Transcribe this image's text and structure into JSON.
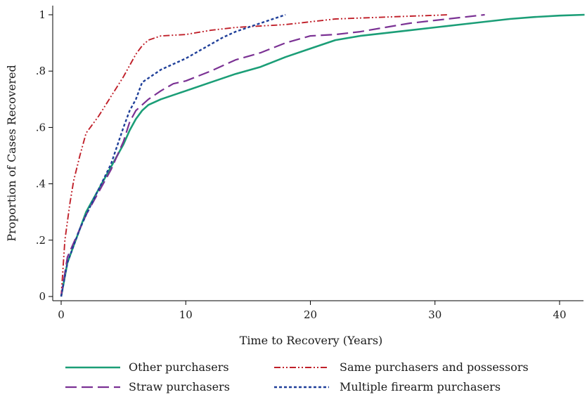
{
  "chart_data": {
    "type": "line",
    "title": "",
    "xlabel": "Time to Recovery (Years)",
    "ylabel": "Proportion of Cases Recovered",
    "xlim": [
      0,
      42
    ],
    "ylim": [
      0,
      1
    ],
    "x_ticks": [
      0,
      10,
      20,
      30,
      40
    ],
    "x_tick_labels": [
      "0",
      "10",
      "20",
      "30",
      "40"
    ],
    "y_ticks": [
      0,
      0.2,
      0.4,
      0.6,
      0.8,
      1
    ],
    "y_tick_labels": [
      "0",
      ".2",
      ".4",
      ".6",
      ".8",
      "1"
    ],
    "grid": false,
    "legend_position": "bottom",
    "series": [
      {
        "name": "Other purchasers",
        "color": "#1b9e77",
        "dash": "solid",
        "x": [
          0,
          0.5,
          1,
          1.5,
          2,
          3,
          4,
          5,
          5.5,
          6,
          6.5,
          7,
          8,
          9,
          10,
          12,
          14,
          16,
          18,
          20,
          22,
          24,
          26,
          28,
          30,
          32,
          34,
          36,
          38,
          40,
          42
        ],
        "y": [
          0,
          0.12,
          0.18,
          0.24,
          0.3,
          0.38,
          0.46,
          0.54,
          0.59,
          0.63,
          0.66,
          0.68,
          0.7,
          0.715,
          0.73,
          0.76,
          0.79,
          0.815,
          0.85,
          0.88,
          0.91,
          0.925,
          0.935,
          0.945,
          0.955,
          0.965,
          0.975,
          0.985,
          0.992,
          0.997,
          1.0
        ]
      },
      {
        "name": "Same purchasers and possessors",
        "color": "#c0202a",
        "dash": "dash-dot",
        "x": [
          0,
          0.3,
          0.7,
          1,
          1.5,
          2,
          3,
          4,
          5,
          6,
          6.5,
          7,
          8,
          10,
          12,
          14,
          16,
          18,
          20,
          22,
          25,
          28,
          30,
          31
        ],
        "y": [
          0,
          0.2,
          0.33,
          0.41,
          0.5,
          0.58,
          0.64,
          0.71,
          0.78,
          0.86,
          0.89,
          0.91,
          0.925,
          0.93,
          0.945,
          0.955,
          0.96,
          0.965,
          0.975,
          0.985,
          0.99,
          0.995,
          0.998,
          1.0
        ]
      },
      {
        "name": "Straw purchasers",
        "color": "#7b3294",
        "dash": "long-dash",
        "x": [
          0,
          0.5,
          1,
          1.5,
          2,
          3,
          4,
          5,
          5.5,
          6,
          7,
          8,
          9,
          10,
          12,
          14,
          16,
          18,
          20,
          22,
          24,
          26,
          28,
          30,
          32,
          34
        ],
        "y": [
          0,
          0.14,
          0.19,
          0.24,
          0.29,
          0.37,
          0.45,
          0.55,
          0.62,
          0.66,
          0.7,
          0.73,
          0.755,
          0.765,
          0.8,
          0.84,
          0.865,
          0.9,
          0.925,
          0.93,
          0.94,
          0.955,
          0.97,
          0.98,
          0.99,
          1.0
        ]
      },
      {
        "name": "Multiple firearm purchasers",
        "color": "#1f3f99",
        "dash": "dotted",
        "x": [
          0,
          0.5,
          1,
          1.5,
          2,
          3,
          4,
          5,
          5.5,
          6,
          6.5,
          7,
          8,
          9,
          10,
          11,
          12,
          13,
          14,
          15,
          16,
          17,
          18
        ],
        "y": [
          0,
          0.12,
          0.18,
          0.24,
          0.29,
          0.38,
          0.47,
          0.6,
          0.66,
          0.7,
          0.76,
          0.775,
          0.805,
          0.825,
          0.845,
          0.87,
          0.895,
          0.92,
          0.94,
          0.955,
          0.97,
          0.985,
          1.0
        ]
      }
    ]
  }
}
